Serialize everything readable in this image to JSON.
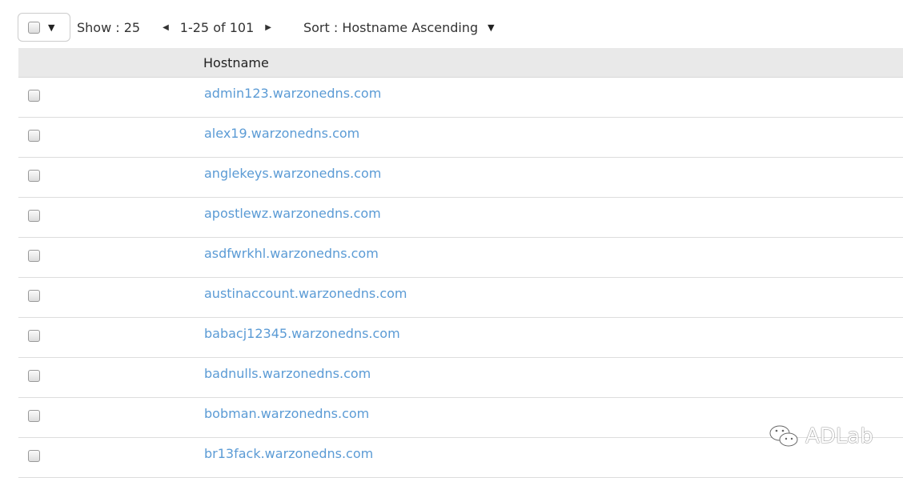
{
  "toolbar": {
    "show_label": "Show : 25",
    "range": "1-25 of 101",
    "sort_label": "Sort : Hostname Ascending"
  },
  "table": {
    "header": "Hostname",
    "rows": [
      "admin123.warzonedns.com",
      "alex19.warzonedns.com",
      "anglekeys.warzonedns.com",
      "apostlewz.warzonedns.com",
      "asdfwrkhl.warzonedns.com",
      "austinaccount.warzonedns.com",
      "babacj12345.warzonedns.com",
      "badnulls.warzonedns.com",
      "bobman.warzonedns.com",
      "br13fack.warzonedns.com"
    ]
  },
  "watermark": {
    "text": "ADLab"
  },
  "colors": {
    "link": "#5b9bd5",
    "header_bg": "#e9e9e9"
  }
}
